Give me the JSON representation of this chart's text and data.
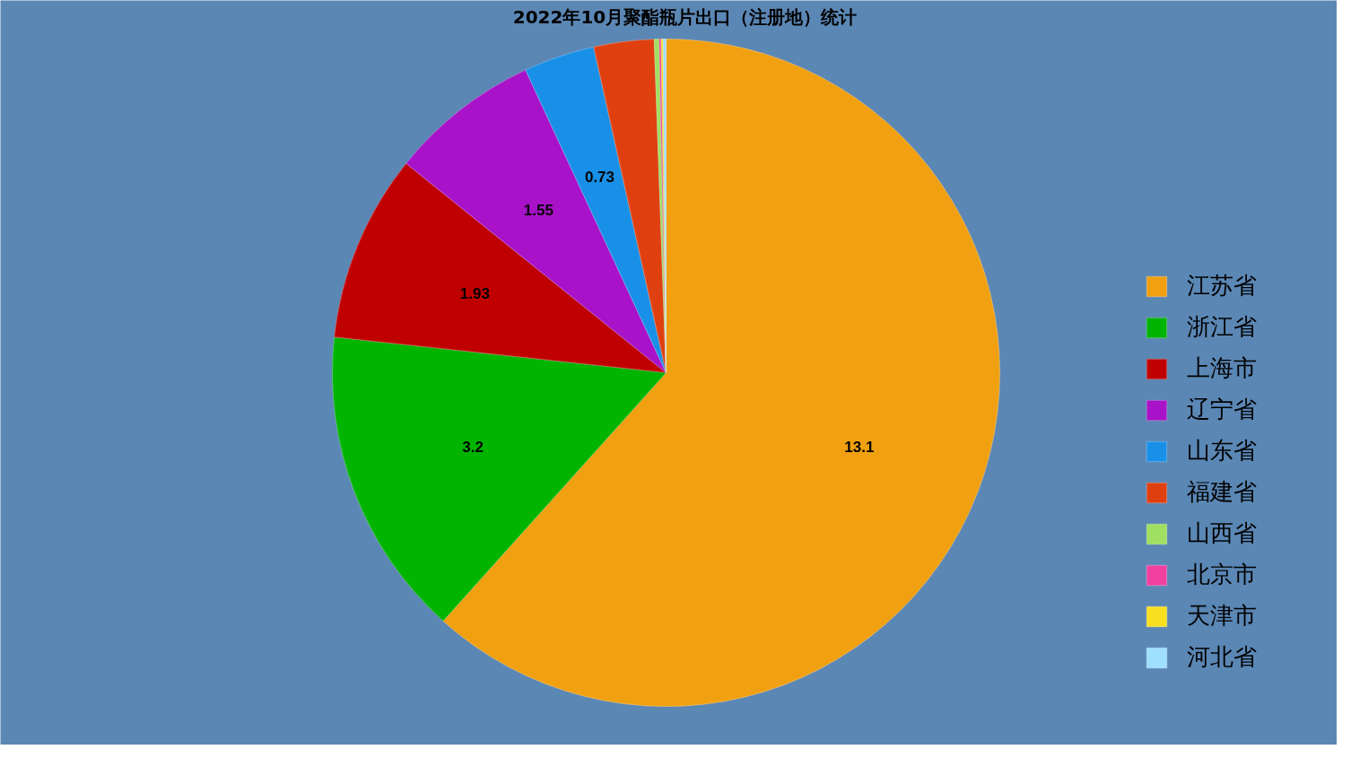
{
  "chart_data": {
    "type": "pie",
    "title": "2022年10月聚酯瓶片出口（注册地）统计",
    "categories": [
      "江苏省",
      "浙江省",
      "上海市",
      "辽宁省",
      "山东省",
      "福建省",
      "山西省",
      "北京市",
      "天津市",
      "河北省"
    ],
    "values": [
      13.1,
      3.2,
      1.93,
      1.55,
      0.73,
      0.62,
      0.05,
      0.02,
      0.02,
      0.03
    ],
    "value_labels": [
      "13.1",
      "3.2",
      "1.93",
      "1.55",
      "0.73",
      null,
      null,
      null,
      null,
      null
    ],
    "colors": [
      "#f0a010",
      "#00b400",
      "#c00000",
      "#a812c8",
      "#1890e8",
      "#e04010",
      "#a0e060",
      "#f040a0",
      "#f8e020",
      "#a0e0ff"
    ],
    "legend": "right"
  }
}
